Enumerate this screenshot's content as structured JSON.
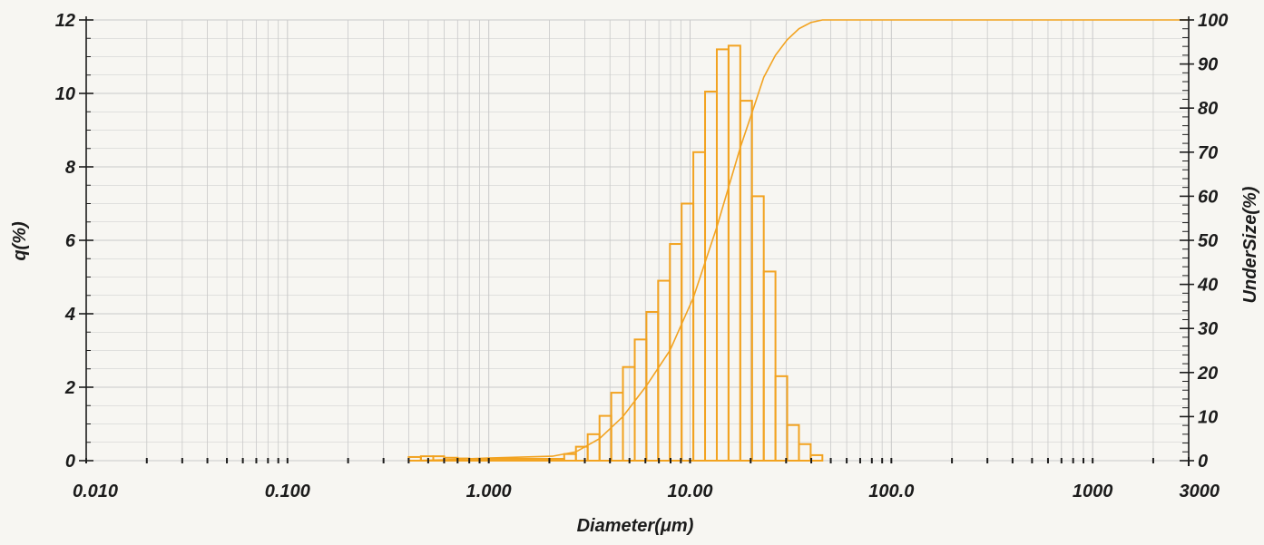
{
  "chart_data": {
    "type": "bar",
    "title": "",
    "xlabel": "Diameter(μm)",
    "ylabel": "q(%)",
    "y2label": "UnderSize(%)",
    "xscale": "log",
    "xlim": [
      0.01,
      3000
    ],
    "ylim": [
      0,
      12
    ],
    "y2lim": [
      0,
      100
    ],
    "grid": true,
    "legend": "none",
    "x_tick_labels": [
      "0.010",
      "0.100",
      "1.000",
      "10.00",
      "100.0",
      "1000",
      "3000"
    ],
    "x_tick_values": [
      0.01,
      0.1,
      1,
      10,
      100,
      1000,
      3000
    ],
    "y_tick_labels": [
      "0",
      "2",
      "4",
      "6",
      "8",
      "10",
      "12"
    ],
    "y_tick_values": [
      0,
      2,
      4,
      6,
      8,
      10,
      12
    ],
    "y2_tick_labels": [
      "0",
      "10",
      "20",
      "30",
      "40",
      "50",
      "60",
      "70",
      "80",
      "90",
      "100"
    ],
    "y2_tick_values": [
      0,
      10,
      20,
      30,
      40,
      50,
      60,
      70,
      80,
      90,
      100
    ],
    "colors": {
      "series": "#f2a321",
      "grid": "#c9c9c9",
      "axis": "#1c1c1c"
    },
    "series": [
      {
        "kind": "bar",
        "axis": "left",
        "bins": [
          {
            "from": 0.4,
            "to": 0.46,
            "q": 0.1
          },
          {
            "from": 0.46,
            "to": 0.53,
            "q": 0.12
          },
          {
            "from": 0.53,
            "to": 0.6,
            "q": 0.12
          },
          {
            "from": 0.6,
            "to": 0.7,
            "q": 0.08
          },
          {
            "from": 0.7,
            "to": 0.8,
            "q": 0.06
          },
          {
            "from": 0.8,
            "to": 2.07,
            "q": 0.05
          },
          {
            "from": 2.07,
            "to": 2.37,
            "q": 0.05
          },
          {
            "from": 2.37,
            "to": 2.71,
            "q": 0.18
          },
          {
            "from": 2.71,
            "to": 3.1,
            "q": 0.38
          },
          {
            "from": 3.1,
            "to": 3.55,
            "q": 0.72
          },
          {
            "from": 3.55,
            "to": 4.06,
            "q": 1.22
          },
          {
            "from": 4.06,
            "to": 4.64,
            "q": 1.85
          },
          {
            "from": 4.64,
            "to": 5.31,
            "q": 2.55
          },
          {
            "from": 5.31,
            "to": 6.07,
            "q": 3.3
          },
          {
            "from": 6.07,
            "to": 6.94,
            "q": 4.05
          },
          {
            "from": 6.94,
            "to": 7.94,
            "q": 4.9
          },
          {
            "from": 7.94,
            "to": 9.08,
            "q": 5.9
          },
          {
            "from": 9.08,
            "to": 10.38,
            "q": 7.0
          },
          {
            "from": 10.38,
            "to": 11.87,
            "q": 8.4
          },
          {
            "from": 11.87,
            "to": 13.58,
            "q": 10.05
          },
          {
            "from": 13.58,
            "to": 15.53,
            "q": 11.2
          },
          {
            "from": 15.53,
            "to": 17.76,
            "q": 11.3
          },
          {
            "from": 17.76,
            "to": 20.31,
            "q": 9.8
          },
          {
            "from": 20.31,
            "to": 23.23,
            "q": 7.2
          },
          {
            "from": 23.23,
            "to": 26.56,
            "q": 5.15
          },
          {
            "from": 26.56,
            "to": 30.38,
            "q": 2.3
          },
          {
            "from": 30.38,
            "to": 34.74,
            "q": 0.97
          },
          {
            "from": 34.74,
            "to": 39.73,
            "q": 0.45
          },
          {
            "from": 39.73,
            "to": 45.43,
            "q": 0.15
          }
        ]
      },
      {
        "kind": "line",
        "axis": "right",
        "x": [
          0.4,
          0.6,
          1,
          2.07,
          2.71,
          3.55,
          4.64,
          6.07,
          7.94,
          10.38,
          13.58,
          17.76,
          20.31,
          23.23,
          26.56,
          30.38,
          34.74,
          39.73,
          45.43,
          60,
          100,
          1000,
          3000
        ],
        "y": [
          0,
          0.2,
          0.6,
          1,
          2,
          5,
          10,
          17,
          25,
          37,
          53,
          71,
          79,
          87,
          92,
          95.5,
          98,
          99.4,
          100,
          100,
          100,
          100,
          100
        ]
      }
    ]
  }
}
